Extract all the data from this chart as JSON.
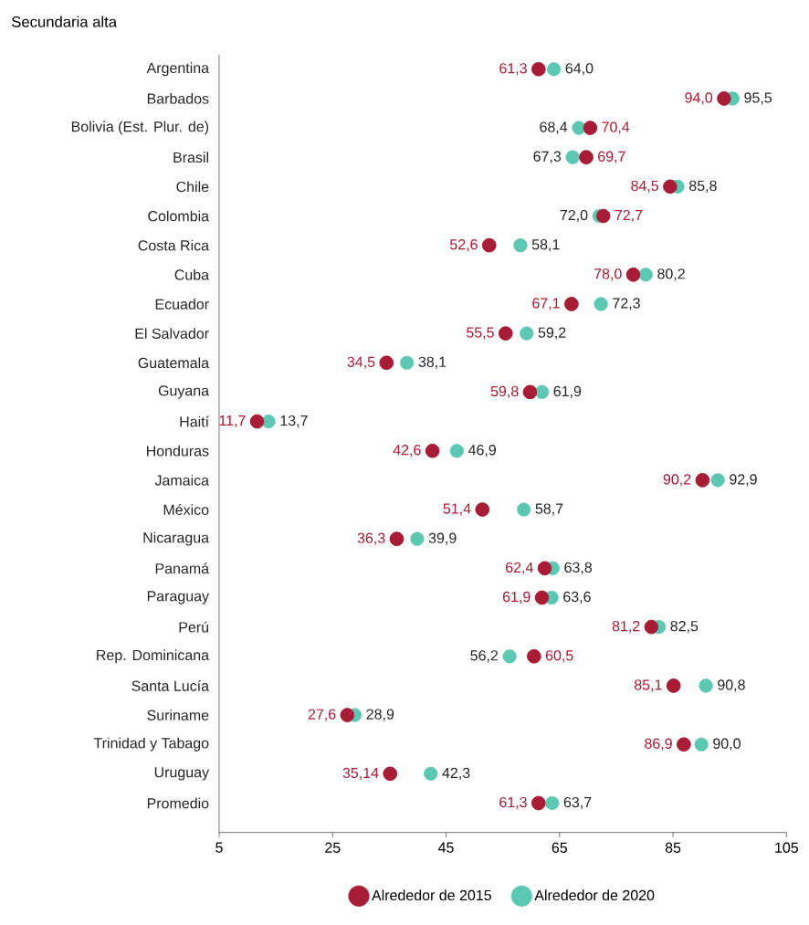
{
  "chart_data": {
    "type": "scatter",
    "title": "Secundaria alta",
    "orientation": "horizontal",
    "marker": "circle",
    "legend": "bottom",
    "categories": [
      "Argentina",
      "Barbados",
      "Bolivia (Est. Plur. de)",
      "Brasil",
      "Chile",
      "Colombia",
      "Costa Rica",
      "Cuba",
      "Ecuador",
      "El Salvador",
      "Guatemala",
      "Guyana",
      "Haití",
      "Honduras",
      "Jamaica",
      "México",
      "Nicaragua",
      "Panamá",
      "Paraguay",
      "Perú",
      "Rep. Dominicana",
      "Santa Lucía",
      "Suriname",
      "Trinidad y Tabago",
      "Uruguay",
      "Promedio"
    ],
    "xlim": [
      5,
      105
    ],
    "xticks": [
      5,
      25,
      45,
      65,
      85,
      105
    ],
    "series": [
      {
        "name": "Alrededor de 2015",
        "color": "#a81c36",
        "values": [
          61.3,
          94.0,
          70.4,
          69.7,
          84.5,
          72.7,
          52.6,
          78.0,
          67.1,
          55.5,
          34.5,
          59.8,
          11.7,
          42.6,
          90.2,
          51.4,
          36.3,
          62.4,
          61.9,
          81.2,
          60.5,
          85.1,
          27.6,
          86.9,
          35.14,
          61.3
        ],
        "value_labels": [
          "61,3",
          "94,0",
          "70,4",
          "69,7",
          "84,5",
          "72,7",
          "52,6",
          "78,0",
          "67,1",
          "55,5",
          "34,5",
          "59,8",
          "11,7",
          "42,6",
          "90,2",
          "51,4",
          "36,3",
          "62,4",
          "61,9",
          "81,2",
          "60,5",
          "85,1",
          "27,6",
          "86,9",
          "35,14",
          "61,3"
        ]
      },
      {
        "name": "Alrededor de 2020",
        "color": "#5cc8b2",
        "values": [
          64.0,
          95.5,
          68.4,
          67.3,
          85.8,
          72.0,
          58.1,
          80.2,
          72.3,
          59.2,
          38.1,
          61.9,
          13.7,
          46.9,
          92.9,
          58.7,
          39.9,
          63.8,
          63.6,
          82.5,
          56.2,
          90.8,
          28.9,
          90.0,
          42.3,
          63.7
        ],
        "value_labels": [
          "64,0",
          "95,5",
          "68,4",
          "67,3",
          "85,8",
          "72,0",
          "58,1",
          "80,2",
          "72,3",
          "59,2",
          "38,1",
          "61,9",
          "13,7",
          "46,9",
          "92,9",
          "58,7",
          "39,9",
          "63,8",
          "63,6",
          "82,5",
          "56,2",
          "90,8",
          "28,9",
          "90,0",
          "42,3",
          "63,7"
        ]
      }
    ]
  }
}
